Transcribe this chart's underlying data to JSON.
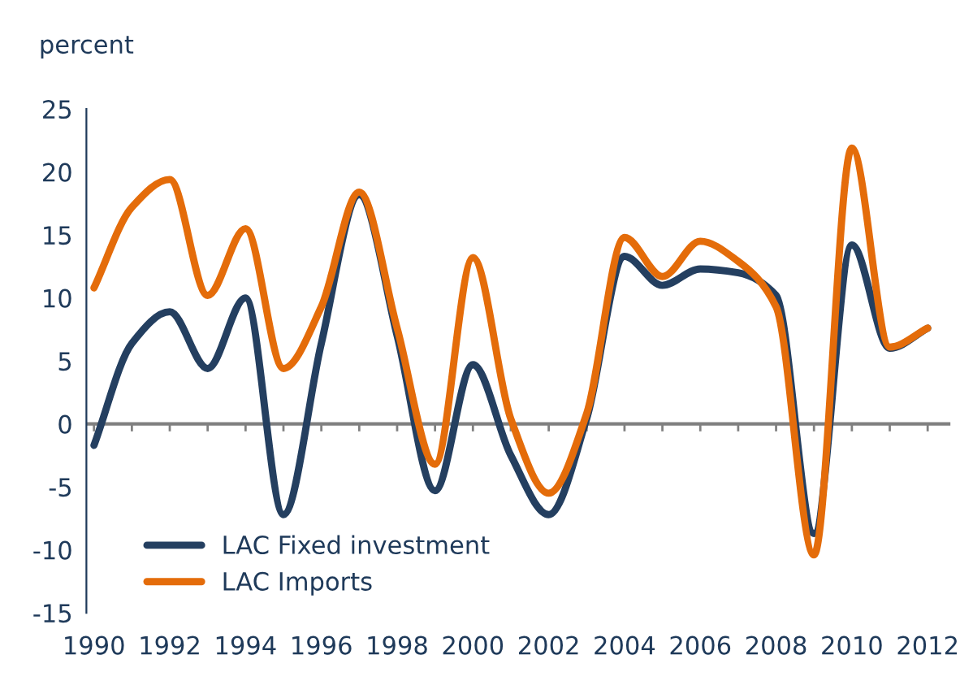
{
  "chart_data": {
    "type": "line",
    "ylabel": "percent",
    "x": [
      1990,
      1991,
      1992,
      1993,
      1994,
      1995,
      1996,
      1997,
      1998,
      1999,
      2000,
      2001,
      2002,
      2003,
      2004,
      2005,
      2006,
      2007,
      2008,
      2009,
      2010,
      2011,
      2012
    ],
    "series": [
      {
        "name": "LAC Fixed investment",
        "color": "#243f60",
        "values": [
          -1.7,
          6.4,
          8.9,
          4.4,
          10,
          -7.2,
          6.4,
          18.2,
          7,
          -5.3,
          4.7,
          -2.5,
          -7.2,
          0.4,
          13.3,
          11,
          12.3,
          12,
          10.2,
          -8.7,
          14.2,
          6,
          7.6
        ]
      },
      {
        "name": "LAC Imports",
        "color": "#e46c0a",
        "values": [
          10.8,
          17.2,
          19.4,
          10.2,
          15.5,
          4.4,
          9.3,
          18.4,
          7.6,
          -3.2,
          13.2,
          0.4,
          -5.5,
          0.8,
          14.8,
          11.7,
          14.5,
          12.9,
          9.3,
          -10.4,
          21.9,
          6.1,
          7.6
        ]
      }
    ],
    "xlim": [
      1989.8,
      2012.6
    ],
    "xticks": [
      1990,
      1992,
      1994,
      1996,
      1998,
      2000,
      2002,
      2004,
      2006,
      2008,
      2010,
      2012
    ],
    "ylim": [
      -15,
      25
    ],
    "yticks": [
      -15,
      -10,
      -5,
      0,
      5,
      10,
      15,
      20,
      25
    ],
    "ref_lines": [
      {
        "axis": "y",
        "value": 0,
        "color": "#808080"
      }
    ],
    "grid": false,
    "legend": "bottom left",
    "marker": "none",
    "line_style": "solid"
  }
}
